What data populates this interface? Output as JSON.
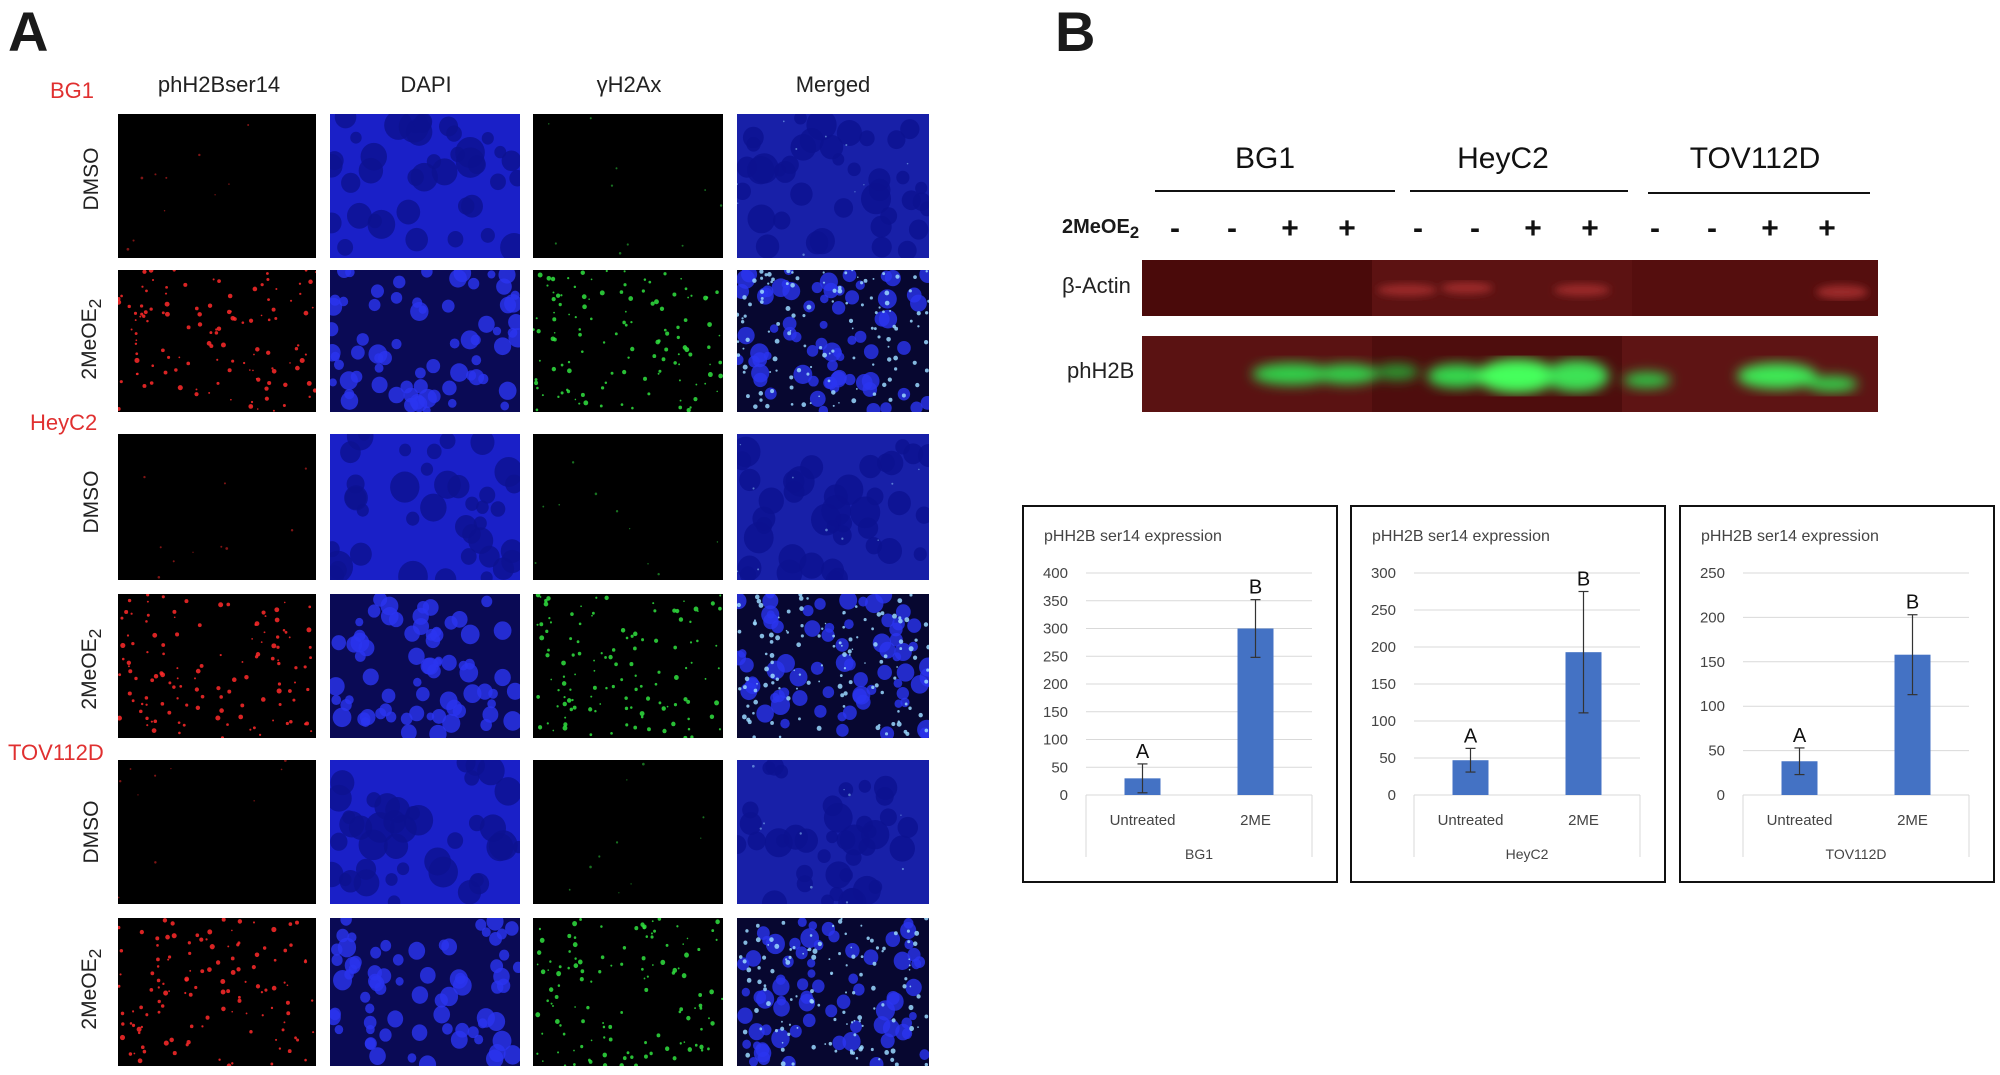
{
  "panel_a": {
    "letter": "A",
    "columns": [
      "phH2Bser14",
      "DAPI",
      "γH2Ax",
      "Merged"
    ],
    "cell_lines": [
      "BG1",
      "HeyC2",
      "TOV112D"
    ],
    "treatments": {
      "control": "DMSO",
      "drug_base": "2MeOE",
      "drug_sub": "2"
    }
  },
  "panel_b": {
    "letter": "B",
    "blot": {
      "cell_lines": [
        "BG1",
        "HeyC2",
        "TOV112D"
      ],
      "treatment_label": "2MeOE",
      "treatment_sub": "2",
      "lanes": [
        "-",
        "-",
        "+",
        "+",
        "-",
        "-",
        "+",
        "+",
        "-",
        "-",
        "+",
        "+"
      ],
      "rows": [
        "β-Actin",
        "phH2B"
      ]
    }
  },
  "chart_data": [
    {
      "type": "bar",
      "title": "pHH2B ser14 expression",
      "categories": [
        "Untreated",
        "2ME"
      ],
      "values": [
        30,
        300
      ],
      "errors": [
        26,
        52
      ],
      "letters": [
        "A",
        "B"
      ],
      "xlabel": "BG1",
      "ylim": [
        0,
        400
      ],
      "ticks": [
        0,
        50,
        100,
        150,
        200,
        250,
        300,
        350,
        400
      ],
      "grid": true,
      "color": "#4472c4"
    },
    {
      "type": "bar",
      "title": "pHH2B ser14 expression",
      "categories": [
        "Untreated",
        "2ME"
      ],
      "values": [
        47,
        193
      ],
      "errors": [
        16,
        82
      ],
      "letters": [
        "A",
        "B"
      ],
      "xlabel": "HeyC2",
      "ylim": [
        0,
        300
      ],
      "ticks": [
        0,
        50,
        100,
        150,
        200,
        250,
        300
      ],
      "grid": true,
      "color": "#4472c4"
    },
    {
      "type": "bar",
      "title": "pHH2B ser14 expression",
      "categories": [
        "Untreated",
        "2ME"
      ],
      "values": [
        38,
        158
      ],
      "errors": [
        15,
        45
      ],
      "letters": [
        "A",
        "B"
      ],
      "xlabel": "TOV112D",
      "ylim": [
        0,
        250
      ],
      "ticks": [
        0,
        50,
        100,
        150,
        200,
        250
      ],
      "grid": true,
      "color": "#4472c4"
    }
  ]
}
